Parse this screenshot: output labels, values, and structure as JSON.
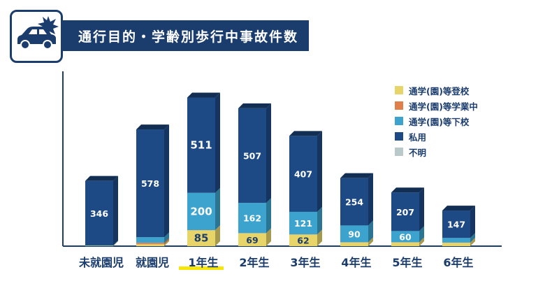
{
  "title": "通行目的・学齢別歩行中事故件数",
  "colors": {
    "header_bg": "#1b3d6e",
    "highlight_underline": "#f5e60c"
  },
  "icon": "car-with-collision-icon",
  "chart_data": {
    "type": "bar",
    "stacked": true,
    "categories": [
      "未就園児",
      "就園児",
      "1年生",
      "2年生",
      "3年生",
      "4年生",
      "5年生",
      "6年生"
    ],
    "highlighted_category": "1年生",
    "series": [
      {
        "name": "通学(園)等登校",
        "color": "#e8d56a",
        "values": [
          2,
          10,
          85,
          69,
          62,
          20,
          20,
          18
        ]
      },
      {
        "name": "通学(園)等学業中",
        "color": "#e07f4a",
        "values": [
          0,
          8,
          1,
          1,
          1,
          1,
          1,
          1
        ]
      },
      {
        "name": "通学(園)等下校",
        "color": "#3ba3cd",
        "values": [
          2,
          30,
          200,
          162,
          121,
          90,
          60,
          25
        ]
      },
      {
        "name": "私用",
        "color": "#1d4a85",
        "values": [
          346,
          578,
          511,
          507,
          407,
          254,
          207,
          147
        ]
      },
      {
        "name": "不明",
        "color": "#b9c8c9",
        "values": [
          0,
          0,
          0,
          0,
          0,
          0,
          0,
          0
        ]
      }
    ],
    "labels": {
      "私用": [
        "346",
        "578",
        "511",
        "507",
        "407",
        "254",
        "207",
        "147"
      ],
      "通学(園)等下校": [
        "",
        "",
        "200",
        "162",
        "121",
        "90",
        "60",
        ""
      ],
      "通学(園)等登校": [
        "",
        "",
        "85",
        "69",
        "62",
        "",
        "",
        ""
      ]
    },
    "legend_position": "top-right",
    "ylim": [
      0,
      900
    ],
    "grid": false
  },
  "legend_labels": [
    "通学(園)等登校",
    "通学(園)等学業中",
    "通学(園)等下校",
    "私用",
    "不明"
  ]
}
